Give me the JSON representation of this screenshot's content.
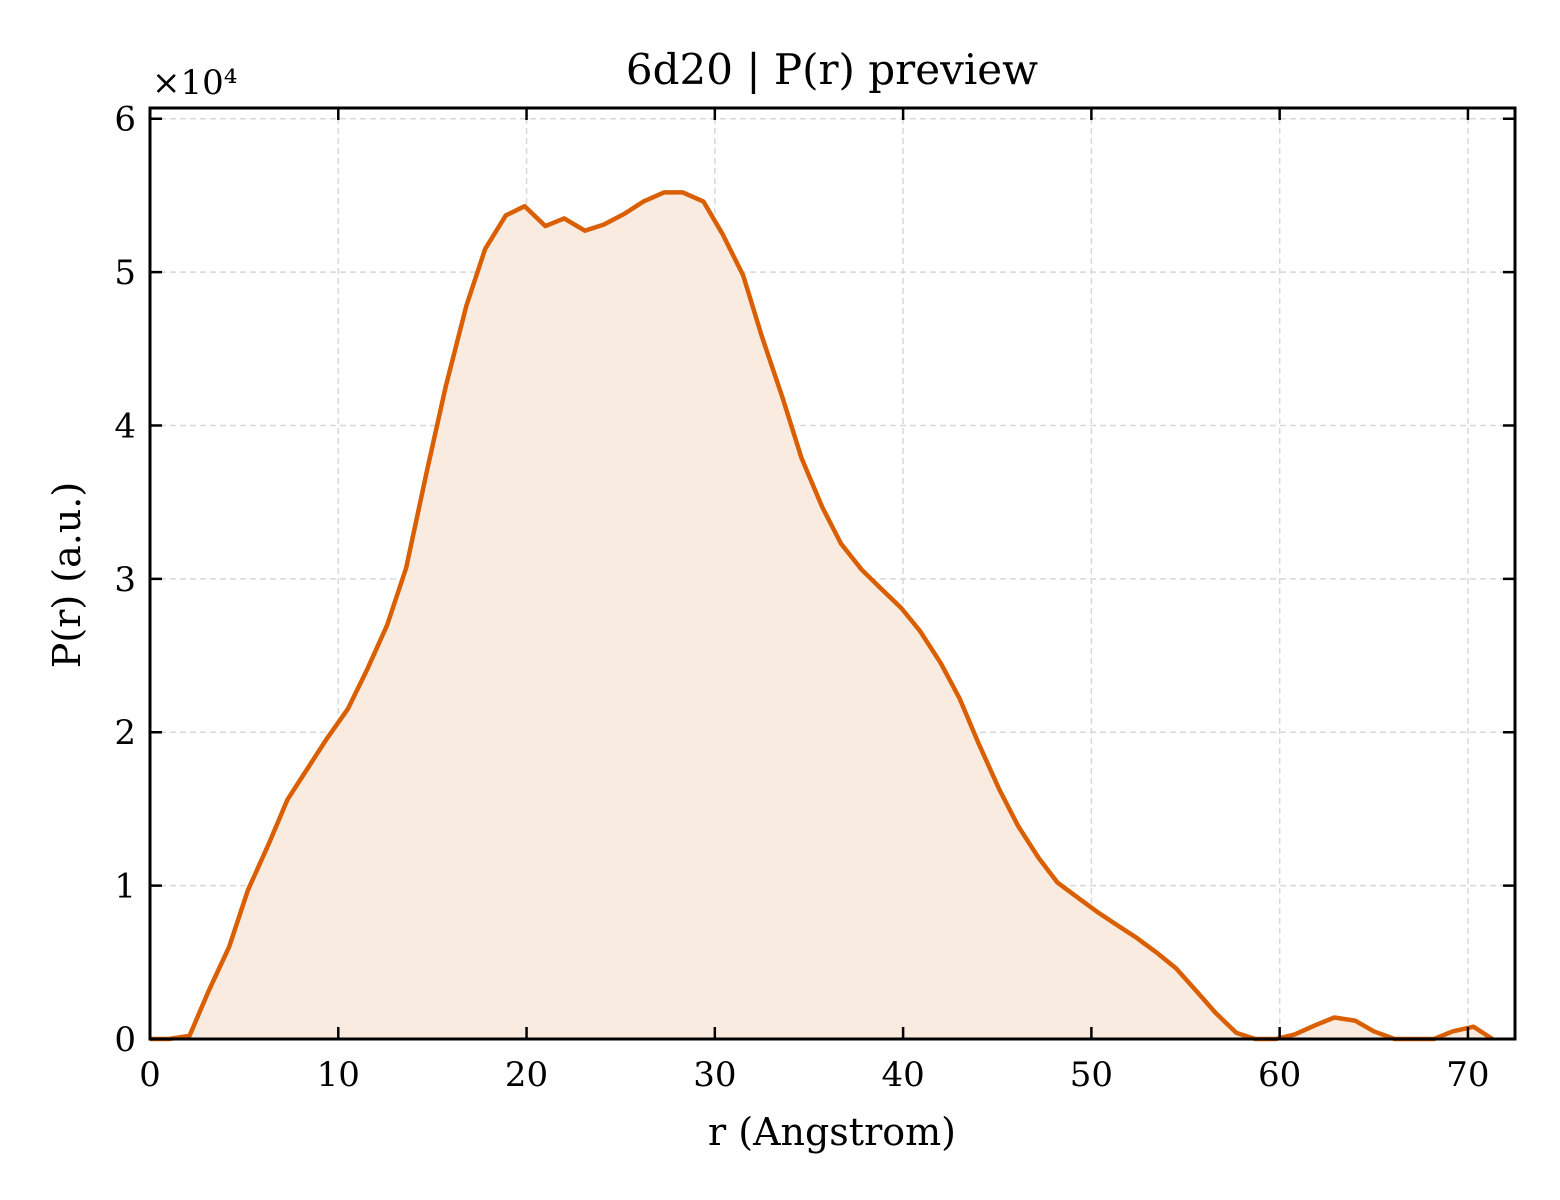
{
  "chart_data": {
    "type": "area",
    "title": "6d20 | P(r) preview",
    "xlabel": "r (Angstrom)",
    "ylabel": "P(r) (a.u.)",
    "y_multiplier_label": "×10⁴",
    "xlim": [
      0,
      72.5
    ],
    "ylim": [
      0,
      6.07
    ],
    "y_unit_scale": 10000,
    "x_ticks": [
      0,
      10,
      20,
      30,
      40,
      50,
      60,
      70
    ],
    "y_ticks": [
      0,
      1,
      2,
      3,
      4,
      5,
      6
    ],
    "x_tick_labels": [
      "0",
      "10",
      "20",
      "30",
      "40",
      "50",
      "60",
      "70"
    ],
    "y_tick_labels": [
      "0",
      "1",
      "2",
      "3",
      "4",
      "5",
      "6"
    ],
    "grid": true,
    "legend": "none",
    "colors": {
      "line": "#d95f02",
      "fill": "#faebe0",
      "grid": "#d8d8d8",
      "axes": "#000000"
    },
    "series": [
      {
        "x": [
          0,
          1.0,
          2.1,
          3.1,
          4.2,
          5.2,
          6.3,
          7.3,
          8.4,
          9.4,
          10.5,
          11.5,
          12.6,
          13.6,
          14.7,
          15.7,
          16.8,
          17.8,
          18.9,
          19.9,
          21.0,
          22.0,
          23.1,
          24.1,
          25.2,
          26.2,
          27.3,
          28.3,
          29.4,
          30.4,
          31.5,
          32.5,
          33.6,
          34.6,
          35.7,
          36.7,
          37.8,
          38.8,
          39.9,
          40.9,
          42.0,
          43.0,
          44.0,
          45.1,
          46.1,
          47.2,
          48.2,
          49.3,
          50.3,
          51.4,
          52.4,
          53.5,
          54.5,
          55.6,
          56.6,
          57.7,
          58.7,
          59.8,
          60.8,
          61.9,
          62.9,
          64.0,
          65.0,
          66.1,
          67.1,
          68.2,
          69.2,
          70.3,
          71.3
        ],
        "y": [
          0,
          0,
          0.02,
          0.31,
          0.6,
          0.97,
          1.27,
          1.56,
          1.77,
          1.96,
          2.15,
          2.4,
          2.7,
          3.07,
          3.7,
          4.25,
          4.78,
          5.15,
          5.37,
          5.43,
          5.3,
          5.35,
          5.27,
          5.31,
          5.38,
          5.46,
          5.52,
          5.52,
          5.46,
          5.25,
          4.98,
          4.58,
          4.18,
          3.79,
          3.47,
          3.23,
          3.06,
          2.94,
          2.81,
          2.66,
          2.45,
          2.22,
          1.93,
          1.63,
          1.39,
          1.18,
          1.02,
          0.92,
          0.83,
          0.74,
          0.66,
          0.56,
          0.46,
          0.31,
          0.17,
          0.04,
          0,
          0,
          0.03,
          0.09,
          0.14,
          0.12,
          0.05,
          0,
          0,
          0,
          0.05,
          0.08,
          0
        ]
      }
    ]
  }
}
